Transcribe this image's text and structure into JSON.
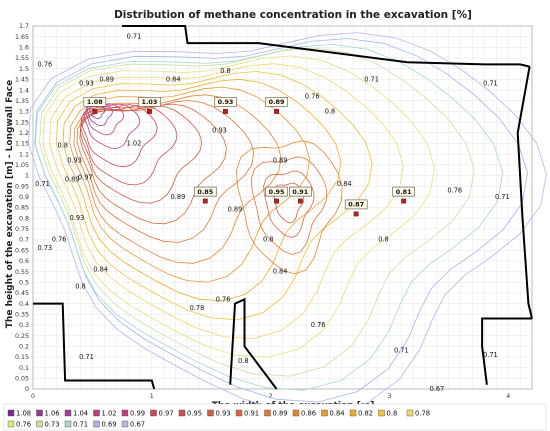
{
  "chart_data": {
    "type": "contour",
    "title": "Distribution of methane concentration in the excavation [%]",
    "xlabel": "The width of the excavation [m]",
    "ylabel": "The height of the excavation [m] - Longwall Face",
    "xlim": [
      0,
      4.2
    ],
    "ylim": [
      0,
      1.7
    ],
    "x_ticks": [
      "0",
      "1",
      "2",
      "3",
      "4"
    ],
    "y_ticks": [
      "0",
      "0.05",
      "0.1",
      "0.15",
      "0.2",
      "0.25",
      "0.3",
      "0.35",
      "0.4",
      "0.45",
      "0.5",
      "0.55",
      "0.6",
      "0.65",
      "0.7",
      "0.75",
      "0.8",
      "0.85",
      "0.9",
      "0.95",
      "1",
      "1.05",
      "1.1",
      "1.15",
      "1.2",
      "1.25",
      "1.3",
      "1.35",
      "1.4",
      "1.45",
      "1.5",
      "1.55",
      "1.6",
      "1.65",
      "1.7"
    ],
    "grid": true,
    "measured_points": [
      {
        "x": 0.52,
        "y": 1.3,
        "value": "1.08"
      },
      {
        "x": 0.98,
        "y": 1.3,
        "value": "1.03"
      },
      {
        "x": 1.62,
        "y": 1.3,
        "value": "0.93"
      },
      {
        "x": 2.05,
        "y": 1.3,
        "value": "0.89"
      },
      {
        "x": 1.45,
        "y": 0.88,
        "value": "0.85"
      },
      {
        "x": 2.05,
        "y": 0.88,
        "value": "0.95"
      },
      {
        "x": 2.25,
        "y": 0.88,
        "value": "0.91"
      },
      {
        "x": 2.72,
        "y": 0.82,
        "value": "0.87"
      },
      {
        "x": 3.12,
        "y": 0.88,
        "value": "0.81"
      }
    ],
    "contour_labels": [
      {
        "x": 0.85,
        "y": 1.65,
        "text": "0.71"
      },
      {
        "x": 0.1,
        "y": 1.52,
        "text": "0.76"
      },
      {
        "x": 0.45,
        "y": 1.43,
        "text": "0.93"
      },
      {
        "x": 0.62,
        "y": 1.45,
        "text": "0.89"
      },
      {
        "x": 1.18,
        "y": 1.45,
        "text": "0.84"
      },
      {
        "x": 1.62,
        "y": 1.49,
        "text": "0.8"
      },
      {
        "x": 2.35,
        "y": 1.37,
        "text": "0.76"
      },
      {
        "x": 2.85,
        "y": 1.45,
        "text": "0.71"
      },
      {
        "x": 2.5,
        "y": 1.3,
        "text": "0.8"
      },
      {
        "x": 3.85,
        "y": 1.43,
        "text": "0.71"
      },
      {
        "x": 0.85,
        "y": 1.15,
        "text": "1.02"
      },
      {
        "x": 1.57,
        "y": 1.21,
        "text": "0.93"
      },
      {
        "x": 0.25,
        "y": 1.14,
        "text": "0.8"
      },
      {
        "x": 0.35,
        "y": 1.07,
        "text": "0.93"
      },
      {
        "x": 0.44,
        "y": 0.99,
        "text": "0.97"
      },
      {
        "x": 0.33,
        "y": 0.98,
        "text": "0.89"
      },
      {
        "x": 0.08,
        "y": 0.96,
        "text": "0.71"
      },
      {
        "x": 2.08,
        "y": 1.07,
        "text": "0.89"
      },
      {
        "x": 1.22,
        "y": 0.9,
        "text": "0.89"
      },
      {
        "x": 1.7,
        "y": 0.84,
        "text": "0.89"
      },
      {
        "x": 2.62,
        "y": 0.96,
        "text": "0.84"
      },
      {
        "x": 3.55,
        "y": 0.93,
        "text": "0.76"
      },
      {
        "x": 3.95,
        "y": 0.9,
        "text": "0.71"
      },
      {
        "x": 0.37,
        "y": 0.8,
        "text": "0.93"
      },
      {
        "x": 0.22,
        "y": 0.7,
        "text": "0.76"
      },
      {
        "x": 2.95,
        "y": 0.7,
        "text": "0.8"
      },
      {
        "x": 0.1,
        "y": 0.66,
        "text": "0.73"
      },
      {
        "x": 1.98,
        "y": 0.7,
        "text": "0.8"
      },
      {
        "x": 0.57,
        "y": 0.56,
        "text": "0.84"
      },
      {
        "x": 2.08,
        "y": 0.55,
        "text": "0.84"
      },
      {
        "x": 0.4,
        "y": 0.48,
        "text": "0.8"
      },
      {
        "x": 1.6,
        "y": 0.42,
        "text": "0.76"
      },
      {
        "x": 1.38,
        "y": 0.38,
        "text": "0.78"
      },
      {
        "x": 2.4,
        "y": 0.3,
        "text": "0.76"
      },
      {
        "x": 3.1,
        "y": 0.18,
        "text": "0.71"
      },
      {
        "x": 0.45,
        "y": 0.15,
        "text": "0.71"
      },
      {
        "x": 1.77,
        "y": 0.13,
        "text": "0.8"
      },
      {
        "x": 3.85,
        "y": 0.16,
        "text": "0.71"
      },
      {
        "x": 3.4,
        "y": 0.0,
        "text": "0.67"
      }
    ],
    "legend": {
      "placement": "bottom",
      "entries": [
        {
          "label": "1.08",
          "color": "#7b2a8a"
        },
        {
          "label": "1.06",
          "color": "#8e3a99"
        },
        {
          "label": "1.04",
          "color": "#a43c9c"
        },
        {
          "label": "1.02",
          "color": "#b8417c"
        },
        {
          "label": "0.99",
          "color": "#c0407a"
        },
        {
          "label": "0.97",
          "color": "#c94760"
        },
        {
          "label": "0.95",
          "color": "#cf4e50"
        },
        {
          "label": "0.93",
          "color": "#d35c44"
        },
        {
          "label": "0.91",
          "color": "#d8683f"
        },
        {
          "label": "0.89",
          "color": "#de7638"
        },
        {
          "label": "0.86",
          "color": "#e38730"
        },
        {
          "label": "0.84",
          "color": "#e89a2e"
        },
        {
          "label": "0.82",
          "color": "#edb02a"
        },
        {
          "label": "0.8",
          "color": "#f0c431"
        },
        {
          "label": "0.78",
          "color": "#f2d86a"
        },
        {
          "label": "0.76",
          "color": "#e6e27a"
        },
        {
          "label": "0.73",
          "color": "#c9e1a6"
        },
        {
          "label": "0.71",
          "color": "#a8d8cf"
        },
        {
          "label": "0.69",
          "color": "#a4b6ea"
        },
        {
          "label": "0.67",
          "color": "#b7b4ee"
        }
      ]
    }
  }
}
